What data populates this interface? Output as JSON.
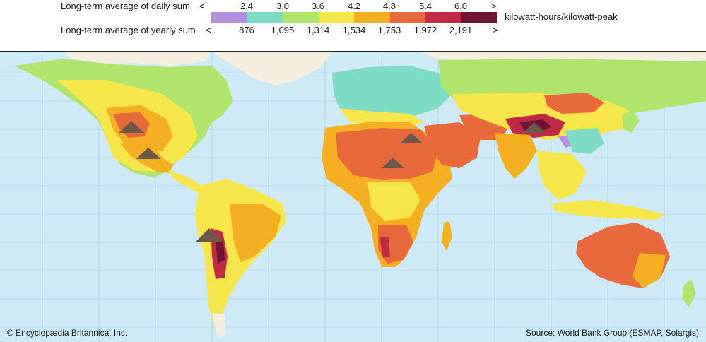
{
  "legend": {
    "daily_label": "Long-term average of daily sum",
    "yearly_label": "Long-term average of yearly sum",
    "less_symbol": "<",
    "greater_symbol": ">",
    "daily_ticks": [
      "2.4",
      "3.0",
      "3.6",
      "4.2",
      "4.8",
      "5.4",
      "6.0"
    ],
    "yearly_ticks": [
      "876",
      "1,095",
      "1,314",
      "1,534",
      "1,753",
      "1,972",
      "2,191"
    ],
    "unit": "kilowatt-hours/kilowatt-peak",
    "colors": [
      "#b38fe0",
      "#7fdcc4",
      "#aee36c",
      "#f7e64a",
      "#f4b020",
      "#e86a3c",
      "#c12a45",
      "#6e1333"
    ]
  },
  "credits": {
    "copyright": "© Encyclopædia Britannica, Inc.",
    "source": "Source: World Bank Group (ESMAP, Solargis)"
  }
}
